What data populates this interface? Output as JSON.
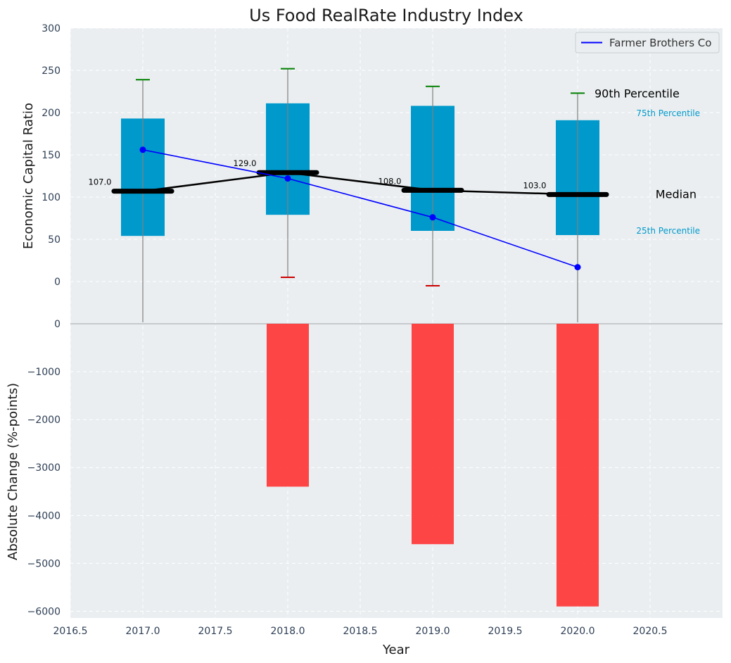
{
  "chart_data": {
    "type": "box",
    "title": "Us Food RealRate Industry Index",
    "xlabel": "Year",
    "top_ylabel": "Economic Capital Ratio",
    "bottom_ylabel": "Absolute Change (%-points)",
    "x_ticks": [
      "2016.5",
      "2017.0",
      "2017.5",
      "2018.0",
      "2018.5",
      "2019.0",
      "2019.5",
      "2020.0",
      "2020.5"
    ],
    "x_tick_values": [
      2016.5,
      2017.0,
      2017.5,
      2018.0,
      2018.5,
      2019.0,
      2019.5,
      2020.0,
      2020.5
    ],
    "xlim": [
      2016.5,
      2021.0
    ],
    "top_ylim": [
      -50,
      300
    ],
    "top_y_ticks": [
      "300",
      "250",
      "200",
      "150",
      "100",
      "50",
      "0"
    ],
    "top_y_tick_values": [
      300,
      250,
      200,
      150,
      100,
      50,
      0
    ],
    "bottom_ylim": [
      -6140,
      0
    ],
    "bottom_y_ticks": [
      "0",
      "−1000",
      "−2000",
      "−3000",
      "−4000",
      "−5000",
      "−6000"
    ],
    "bottom_y_tick_values": [
      0,
      -1000,
      -2000,
      -3000,
      -4000,
      -5000,
      -6000
    ],
    "years": [
      2017,
      2018,
      2019,
      2020
    ],
    "p90": [
      239,
      252,
      231,
      223
    ],
    "p75": [
      193,
      211,
      208,
      191
    ],
    "median": [
      107,
      129,
      108,
      103
    ],
    "median_labels": [
      "107.0",
      "129.0",
      "108.0",
      "103.0"
    ],
    "p25": [
      54,
      79,
      60,
      55
    ],
    "p10": [
      null,
      5,
      -5,
      null
    ],
    "company": {
      "name": "Farmer Brothers Co",
      "values": [
        156,
        122,
        76,
        17
      ]
    },
    "absolute_change": [
      0,
      -3400,
      -4600,
      -5900
    ],
    "annotations": {
      "p90": "90th Percentile",
      "p75": "75th Percentile",
      "median": "Median",
      "p25": "25th Percentile"
    },
    "legend_position": "top-right",
    "grid": true,
    "colors": {
      "box": "#0099cc",
      "median": "#000000",
      "company": "#0000ff",
      "change_bar": "#ff3b3b",
      "whisker_top": "#008000",
      "whisker_bottom": "#cc0000",
      "background": "#eaeef0",
      "tick_text": "#2e3f55"
    }
  }
}
